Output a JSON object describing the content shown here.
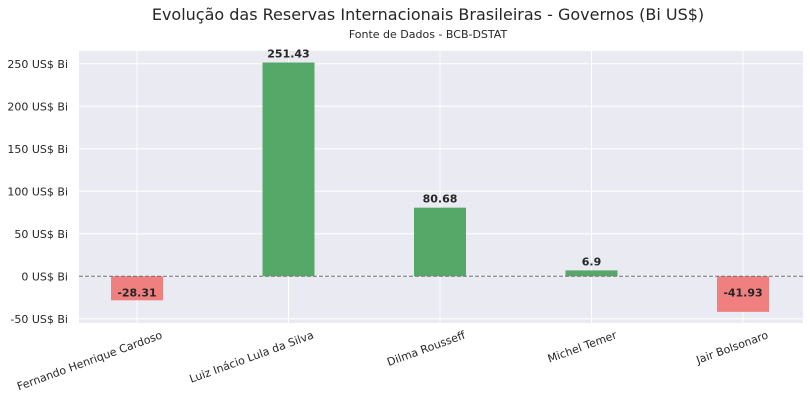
{
  "chart_data": {
    "type": "bar",
    "title": "Evolução das Reservas Internacionais Brasileiras - Governos (Bi US$)",
    "subtitle": "Fonte de Dados - BCB-DSTAT",
    "xlabel": "",
    "ylabel": "",
    "categories": [
      "Fernando Henrique Cardoso",
      "Luiz Inácio Lula da Silva",
      "Dilma Rousseff",
      "Michel Temer",
      "Jair Bolsonaro"
    ],
    "values": [
      -28.31,
      251.43,
      80.68,
      6.9,
      -41.93
    ],
    "data_labels": [
      "-28.31",
      "251.43",
      "80.68",
      "6.9",
      "-41.93"
    ],
    "ylim": [
      -55,
      265
    ],
    "yticks": [
      -50,
      0,
      50,
      100,
      150,
      200,
      250
    ],
    "ytick_labels": [
      "-50 US$ Bi",
      "0 US$ Bi",
      "50 US$ Bi",
      "100 US$ Bi",
      "150 US$ Bi",
      "200 US$ Bi",
      "250 US$ Bi"
    ],
    "grid": true,
    "zero_line": "dashed",
    "colors": {
      "positive": "#55a868",
      "negative": "#f08080",
      "background": "#eaeaf2",
      "grid": "#ffffff",
      "zero_line": "#6e6e6e"
    }
  }
}
